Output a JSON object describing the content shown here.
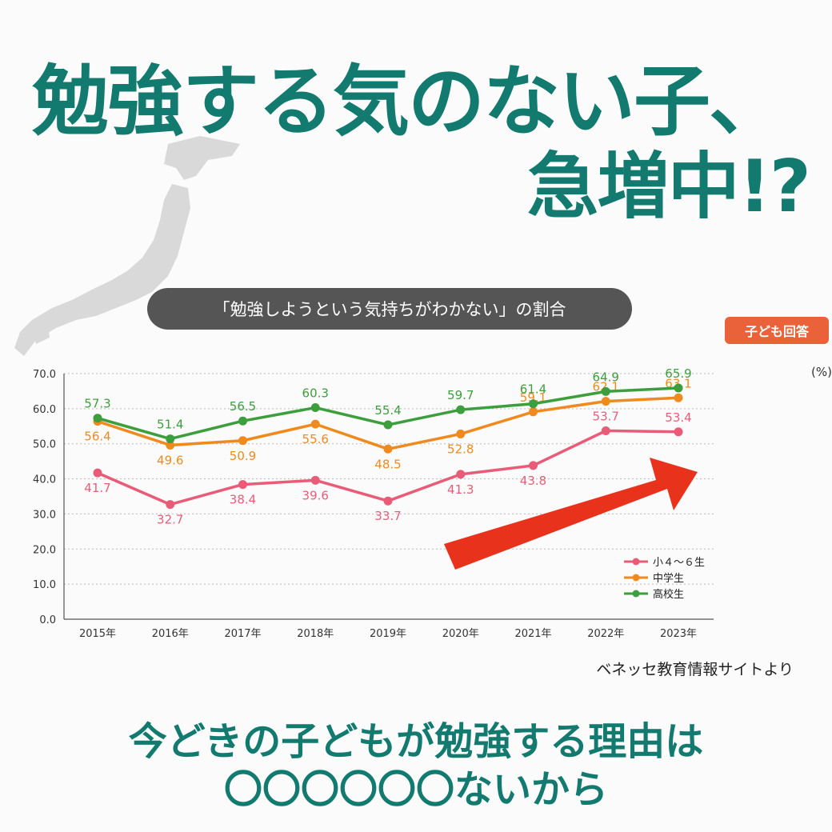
{
  "headline": {
    "line1": "勉強する気のない子、",
    "line2": "急増中!?"
  },
  "chart_title": "「勉強しようという気持ちがわかない」の割合",
  "respondent_badge": "子ども回答",
  "unit_label": "(%)",
  "source_note": "ベネッセ教育情報サイトより",
  "bottom": {
    "line1": "今どきの子どもが勉強する理由は",
    "line2": "〇〇〇〇〇〇ないから"
  },
  "colors": {
    "accent": "#137a70",
    "elementary": "#e85c78",
    "junior_high": "#ef8a1e",
    "high_school": "#3c9e3c",
    "arrow": "#e8321c",
    "badge": "#e9623a"
  },
  "icons": [
    "japan-map-icon",
    "trend-arrow-icon"
  ],
  "chart_data": {
    "type": "line",
    "title": "「勉強しようという気持ちがわかない」の割合",
    "xlabel": "",
    "ylabel": "",
    "categories": [
      "2015年",
      "2016年",
      "2017年",
      "2018年",
      "2019年",
      "2020年",
      "2021年",
      "2022年",
      "2023年"
    ],
    "ylim": [
      0,
      70
    ],
    "yticks": [
      "0.0",
      "10.0",
      "20.0",
      "30.0",
      "40.0",
      "50.0",
      "60.0",
      "70.0"
    ],
    "grid": true,
    "legend": "bottom-right",
    "series": [
      {
        "name": "小４～６生",
        "color": "#e85c78",
        "values": [
          41.7,
          32.7,
          38.4,
          39.6,
          33.7,
          41.3,
          43.8,
          53.7,
          53.4
        ],
        "labels": [
          "41.7",
          "32.7",
          "38.4",
          "39.6",
          "33.7",
          "41.3",
          "43.8",
          "53.7",
          "53.4"
        ]
      },
      {
        "name": "中学生",
        "color": "#ef8a1e",
        "values": [
          56.4,
          49.6,
          50.9,
          55.6,
          48.5,
          52.8,
          59.1,
          62.1,
          63.1
        ],
        "labels": [
          "56.4",
          "49.6",
          "50.9",
          "55.6",
          "48.5",
          "52.8",
          "59.1",
          "62.1",
          "63.1"
        ]
      },
      {
        "name": "高校生",
        "color": "#3c9e3c",
        "values": [
          57.3,
          51.4,
          56.5,
          60.3,
          55.4,
          59.7,
          61.4,
          64.9,
          65.9
        ],
        "labels": [
          "57.3",
          "51.4",
          "56.5",
          "60.3",
          "55.4",
          "59.7",
          "61.4",
          "64.9",
          "65.9"
        ]
      }
    ]
  }
}
